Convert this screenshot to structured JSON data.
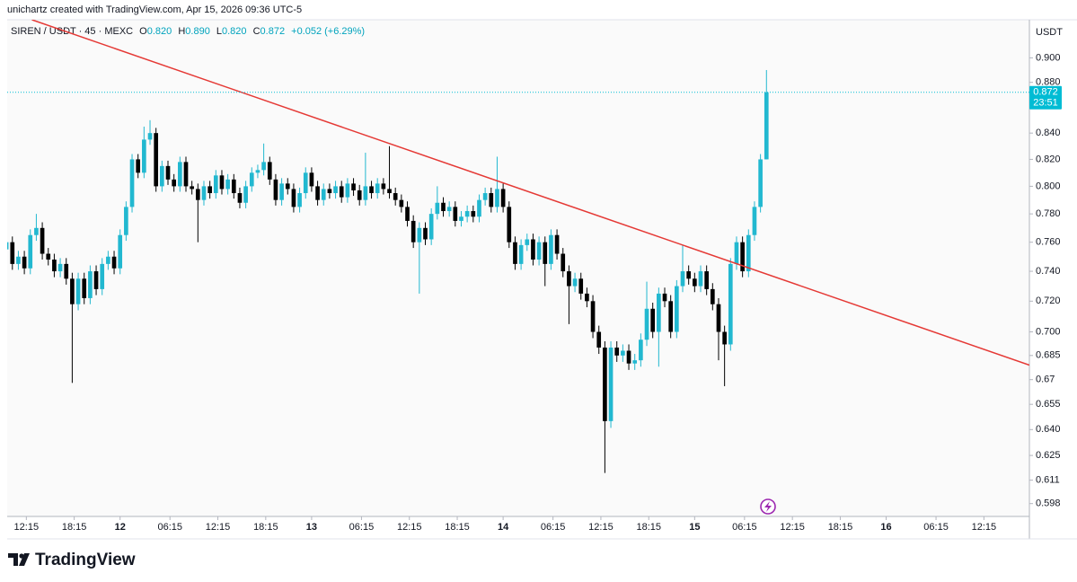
{
  "header": "unichartz created with TradingView.com, Apr 15, 2026 09:36 UTC-5",
  "footer_brand": "TradingView",
  "chart_data": {
    "type": "candlestick",
    "legend": {
      "symbol": "SIREN / USDT · 45 · MEXC",
      "open_label": "O",
      "open": "0.820",
      "high_label": "H",
      "high": "0.890",
      "low_label": "L",
      "low": "0.820",
      "close_label": "C",
      "close": "0.872",
      "change": "+0.052 (+6.29%)"
    },
    "y_unit": "USDT",
    "up_color": "#22b8d0",
    "down_color": "#000000",
    "log_y": true,
    "grid": false,
    "ylim": [
      0.591,
      0.932
    ],
    "yticks": [
      {
        "value": 0.9,
        "label": "0.900"
      },
      {
        "value": 0.88,
        "label": "0.880"
      },
      {
        "value": 0.84,
        "label": "0.840"
      },
      {
        "value": 0.82,
        "label": "0.820"
      },
      {
        "value": 0.8,
        "label": "0.800"
      },
      {
        "value": 0.78,
        "label": "0.780"
      },
      {
        "value": 0.76,
        "label": "0.760"
      },
      {
        "value": 0.74,
        "label": "0.740"
      },
      {
        "value": 0.72,
        "label": "0.720"
      },
      {
        "value": 0.7,
        "label": "0.700"
      },
      0.685,
      0.67,
      0.655,
      {
        "value": 0.64,
        "label": "0.640"
      },
      0.625,
      0.611,
      0.598
    ],
    "xlim": [
      -2.4,
      125.7
    ],
    "xticks": [
      {
        "value": 0,
        "label": "12:15"
      },
      {
        "value": 6,
        "label": "18:15"
      },
      {
        "value": 11.75,
        "label": "12"
      },
      {
        "value": 18,
        "label": "06:15"
      },
      {
        "value": 24,
        "label": "12:15"
      },
      {
        "value": 30,
        "label": "18:15"
      },
      {
        "value": 35.75,
        "label": "13"
      },
      {
        "value": 42,
        "label": "06:15"
      },
      {
        "value": 48,
        "label": "12:15"
      },
      {
        "value": 54,
        "label": "18:15"
      },
      {
        "value": 59.75,
        "label": "14"
      },
      {
        "value": 66,
        "label": "06:15"
      },
      {
        "value": 72,
        "label": "12:15"
      },
      {
        "value": 78,
        "label": "18:15"
      },
      {
        "value": 83.75,
        "label": "15"
      },
      {
        "value": 90,
        "label": "06:15"
      },
      {
        "value": 96,
        "label": "12:15"
      },
      {
        "value": 102,
        "label": "18:15"
      },
      {
        "value": 107.75,
        "label": "16"
      },
      {
        "value": 114,
        "label": "06:15"
      },
      {
        "value": 120,
        "label": "12:15"
      }
    ],
    "x": [
      -2.5,
      -1.75,
      -1,
      -0.25,
      0.5,
      1.25,
      2,
      2.75,
      3.5,
      4.25,
      5,
      5.75,
      6.5,
      7.25,
      8,
      8.75,
      9.5,
      10.25,
      11,
      11.75,
      12.5,
      13.25,
      14,
      14.75,
      15.5,
      16.25,
      17,
      17.75,
      18.5,
      19.25,
      20,
      20.75,
      21.5,
      22.25,
      23,
      23.75,
      24.5,
      25.25,
      26,
      26.75,
      27.5,
      28.25,
      29,
      29.75,
      30.5,
      31.25,
      32,
      32.75,
      33.5,
      34.25,
      35,
      35.75,
      36.5,
      37.25,
      38,
      38.75,
      39.5,
      40.25,
      41,
      41.75,
      42.5,
      43.25,
      44,
      44.75,
      45.5,
      46.25,
      47,
      47.75,
      48.5,
      49.25,
      50,
      50.75,
      51.5,
      52.25,
      53,
      53.75,
      54.5,
      55.25,
      56,
      56.75,
      57.5,
      58.25,
      59,
      59.75,
      60.5,
      61.25,
      62,
      62.75,
      63.5,
      64.25,
      65,
      65.75,
      66.5,
      67.25,
      68,
      68.75,
      69.5,
      70.25,
      71,
      71.75,
      72.5,
      73.25,
      74,
      74.75,
      75.5,
      76.25,
      77,
      77.75,
      78.5,
      79.25,
      80,
      80.75,
      81.5,
      82.25,
      83,
      83.75,
      84.5,
      85.25,
      86,
      86.75,
      87.5,
      88.25,
      89,
      89.75,
      90.5,
      91.25,
      92,
      92.75
    ],
    "ohlc": [
      [
        0.755,
        0.764,
        0.751,
        0.76
      ],
      [
        0.76,
        0.764,
        0.741,
        0.745
      ],
      [
        0.745,
        0.754,
        0.741,
        0.75
      ],
      [
        0.75,
        0.754,
        0.738,
        0.742
      ],
      [
        0.742,
        0.769,
        0.738,
        0.765
      ],
      [
        0.765,
        0.78,
        0.761,
        0.77
      ],
      [
        0.77,
        0.774,
        0.748,
        0.752
      ],
      [
        0.752,
        0.756,
        0.744,
        0.748
      ],
      [
        0.748,
        0.752,
        0.736,
        0.74
      ],
      [
        0.74,
        0.749,
        0.736,
        0.745
      ],
      [
        0.745,
        0.749,
        0.731,
        0.735
      ],
      [
        0.735,
        0.739,
        0.668,
        0.718
      ],
      [
        0.718,
        0.739,
        0.714,
        0.735
      ],
      [
        0.735,
        0.739,
        0.718,
        0.722
      ],
      [
        0.722,
        0.744,
        0.718,
        0.74
      ],
      [
        0.74,
        0.744,
        0.724,
        0.728
      ],
      [
        0.728,
        0.749,
        0.724,
        0.745
      ],
      [
        0.745,
        0.754,
        0.741,
        0.75
      ],
      [
        0.75,
        0.754,
        0.738,
        0.742
      ],
      [
        0.742,
        0.769,
        0.738,
        0.765
      ],
      [
        0.765,
        0.789,
        0.761,
        0.785
      ],
      [
        0.785,
        0.824,
        0.781,
        0.82
      ],
      [
        0.82,
        0.824,
        0.806,
        0.81
      ],
      [
        0.81,
        0.845,
        0.806,
        0.835
      ],
      [
        0.835,
        0.85,
        0.831,
        0.84
      ],
      [
        0.84,
        0.844,
        0.796,
        0.8
      ],
      [
        0.8,
        0.819,
        0.796,
        0.815
      ],
      [
        0.815,
        0.819,
        0.801,
        0.805
      ],
      [
        0.805,
        0.809,
        0.796,
        0.8
      ],
      [
        0.8,
        0.822,
        0.796,
        0.818
      ],
      [
        0.818,
        0.822,
        0.796,
        0.8
      ],
      [
        0.8,
        0.804,
        0.794,
        0.798
      ],
      [
        0.798,
        0.802,
        0.76,
        0.79
      ],
      [
        0.79,
        0.804,
        0.786,
        0.8
      ],
      [
        0.8,
        0.804,
        0.791,
        0.795
      ],
      [
        0.795,
        0.812,
        0.791,
        0.808
      ],
      [
        0.808,
        0.812,
        0.794,
        0.798
      ],
      [
        0.798,
        0.809,
        0.794,
        0.805
      ],
      [
        0.805,
        0.809,
        0.791,
        0.795
      ],
      [
        0.795,
        0.799,
        0.784,
        0.788
      ],
      [
        0.788,
        0.804,
        0.784,
        0.8
      ],
      [
        0.8,
        0.814,
        0.796,
        0.81
      ],
      [
        0.81,
        0.816,
        0.806,
        0.812
      ],
      [
        0.812,
        0.832,
        0.808,
        0.818
      ],
      [
        0.818,
        0.822,
        0.801,
        0.805
      ],
      [
        0.805,
        0.809,
        0.786,
        0.79
      ],
      [
        0.79,
        0.806,
        0.786,
        0.802
      ],
      [
        0.802,
        0.806,
        0.794,
        0.798
      ],
      [
        0.798,
        0.802,
        0.781,
        0.785
      ],
      [
        0.785,
        0.799,
        0.781,
        0.795
      ],
      [
        0.795,
        0.814,
        0.791,
        0.81
      ],
      [
        0.81,
        0.814,
        0.796,
        0.8
      ],
      [
        0.8,
        0.804,
        0.786,
        0.79
      ],
      [
        0.79,
        0.802,
        0.786,
        0.798
      ],
      [
        0.798,
        0.802,
        0.791,
        0.795
      ],
      [
        0.795,
        0.804,
        0.791,
        0.8
      ],
      [
        0.8,
        0.804,
        0.788,
        0.792
      ],
      [
        0.792,
        0.806,
        0.788,
        0.802
      ],
      [
        0.802,
        0.806,
        0.793,
        0.797
      ],
      [
        0.797,
        0.801,
        0.786,
        0.79
      ],
      [
        0.79,
        0.825,
        0.786,
        0.8
      ],
      [
        0.8,
        0.804,
        0.791,
        0.795
      ],
      [
        0.795,
        0.806,
        0.791,
        0.802
      ],
      [
        0.802,
        0.806,
        0.794,
        0.798
      ],
      [
        0.798,
        0.83,
        0.791,
        0.795
      ],
      [
        0.795,
        0.799,
        0.786,
        0.79
      ],
      [
        0.79,
        0.794,
        0.781,
        0.785
      ],
      [
        0.785,
        0.789,
        0.771,
        0.775
      ],
      [
        0.775,
        0.779,
        0.756,
        0.76
      ],
      [
        0.76,
        0.774,
        0.725,
        0.77
      ],
      [
        0.77,
        0.774,
        0.758,
        0.762
      ],
      [
        0.762,
        0.784,
        0.758,
        0.78
      ],
      [
        0.78,
        0.8,
        0.776,
        0.788
      ],
      [
        0.788,
        0.792,
        0.778,
        0.782
      ],
      [
        0.782,
        0.789,
        0.778,
        0.785
      ],
      [
        0.785,
        0.789,
        0.771,
        0.775
      ],
      [
        0.775,
        0.782,
        0.771,
        0.778
      ],
      [
        0.778,
        0.786,
        0.774,
        0.782
      ],
      [
        0.782,
        0.786,
        0.774,
        0.778
      ],
      [
        0.778,
        0.794,
        0.774,
        0.79
      ],
      [
        0.79,
        0.799,
        0.786,
        0.795
      ],
      [
        0.795,
        0.799,
        0.781,
        0.785
      ],
      [
        0.785,
        0.822,
        0.781,
        0.798
      ],
      [
        0.798,
        0.802,
        0.781,
        0.785
      ],
      [
        0.785,
        0.789,
        0.756,
        0.76
      ],
      [
        0.76,
        0.764,
        0.741,
        0.745
      ],
      [
        0.745,
        0.762,
        0.741,
        0.758
      ],
      [
        0.758,
        0.766,
        0.754,
        0.762
      ],
      [
        0.762,
        0.766,
        0.744,
        0.748
      ],
      [
        0.748,
        0.764,
        0.744,
        0.76
      ],
      [
        0.76,
        0.764,
        0.73,
        0.745
      ],
      [
        0.745,
        0.769,
        0.741,
        0.765
      ],
      [
        0.765,
        0.769,
        0.748,
        0.752
      ],
      [
        0.752,
        0.756,
        0.736,
        0.74
      ],
      [
        0.74,
        0.744,
        0.705,
        0.73
      ],
      [
        0.73,
        0.739,
        0.726,
        0.735
      ],
      [
        0.735,
        0.739,
        0.721,
        0.725
      ],
      [
        0.725,
        0.729,
        0.716,
        0.72
      ],
      [
        0.72,
        0.724,
        0.696,
        0.7
      ],
      [
        0.7,
        0.704,
        0.686,
        0.69
      ],
      [
        0.69,
        0.694,
        0.615,
        0.645
      ],
      [
        0.645,
        0.694,
        0.641,
        0.69
      ],
      [
        0.69,
        0.694,
        0.681,
        0.685
      ],
      [
        0.685,
        0.692,
        0.681,
        0.688
      ],
      [
        0.688,
        0.692,
        0.676,
        0.68
      ],
      [
        0.68,
        0.686,
        0.676,
        0.682
      ],
      [
        0.682,
        0.699,
        0.678,
        0.695
      ],
      [
        0.695,
        0.733,
        0.691,
        0.715
      ],
      [
        0.715,
        0.719,
        0.696,
        0.7
      ],
      [
        0.7,
        0.729,
        0.678,
        0.725
      ],
      [
        0.725,
        0.729,
        0.716,
        0.72
      ],
      [
        0.72,
        0.724,
        0.696,
        0.7
      ],
      [
        0.7,
        0.734,
        0.696,
        0.73
      ],
      [
        0.73,
        0.758,
        0.726,
        0.74
      ],
      [
        0.74,
        0.744,
        0.731,
        0.735
      ],
      [
        0.735,
        0.739,
        0.726,
        0.73
      ],
      [
        0.73,
        0.744,
        0.726,
        0.74
      ],
      [
        0.74,
        0.744,
        0.724,
        0.728
      ],
      [
        0.728,
        0.732,
        0.714,
        0.718
      ],
      [
        0.718,
        0.722,
        0.682,
        0.7
      ],
      [
        0.7,
        0.704,
        0.666,
        0.692
      ],
      [
        0.692,
        0.749,
        0.688,
        0.745
      ],
      [
        0.745,
        0.764,
        0.741,
        0.76
      ],
      [
        0.76,
        0.764,
        0.736,
        0.74
      ],
      [
        0.74,
        0.769,
        0.736,
        0.765
      ],
      [
        0.765,
        0.789,
        0.761,
        0.785
      ],
      [
        0.785,
        0.824,
        0.781,
        0.82
      ],
      [
        0.82,
        0.89,
        0.82,
        0.872
      ]
    ],
    "trendline": {
      "x": [
        0.7,
        125.7
      ],
      "y": [
        0.932,
        0.679
      ],
      "color": "#e53935"
    },
    "last_price": {
      "value": 0.872,
      "countdown": "23:51",
      "color": "#00bcd4"
    }
  }
}
